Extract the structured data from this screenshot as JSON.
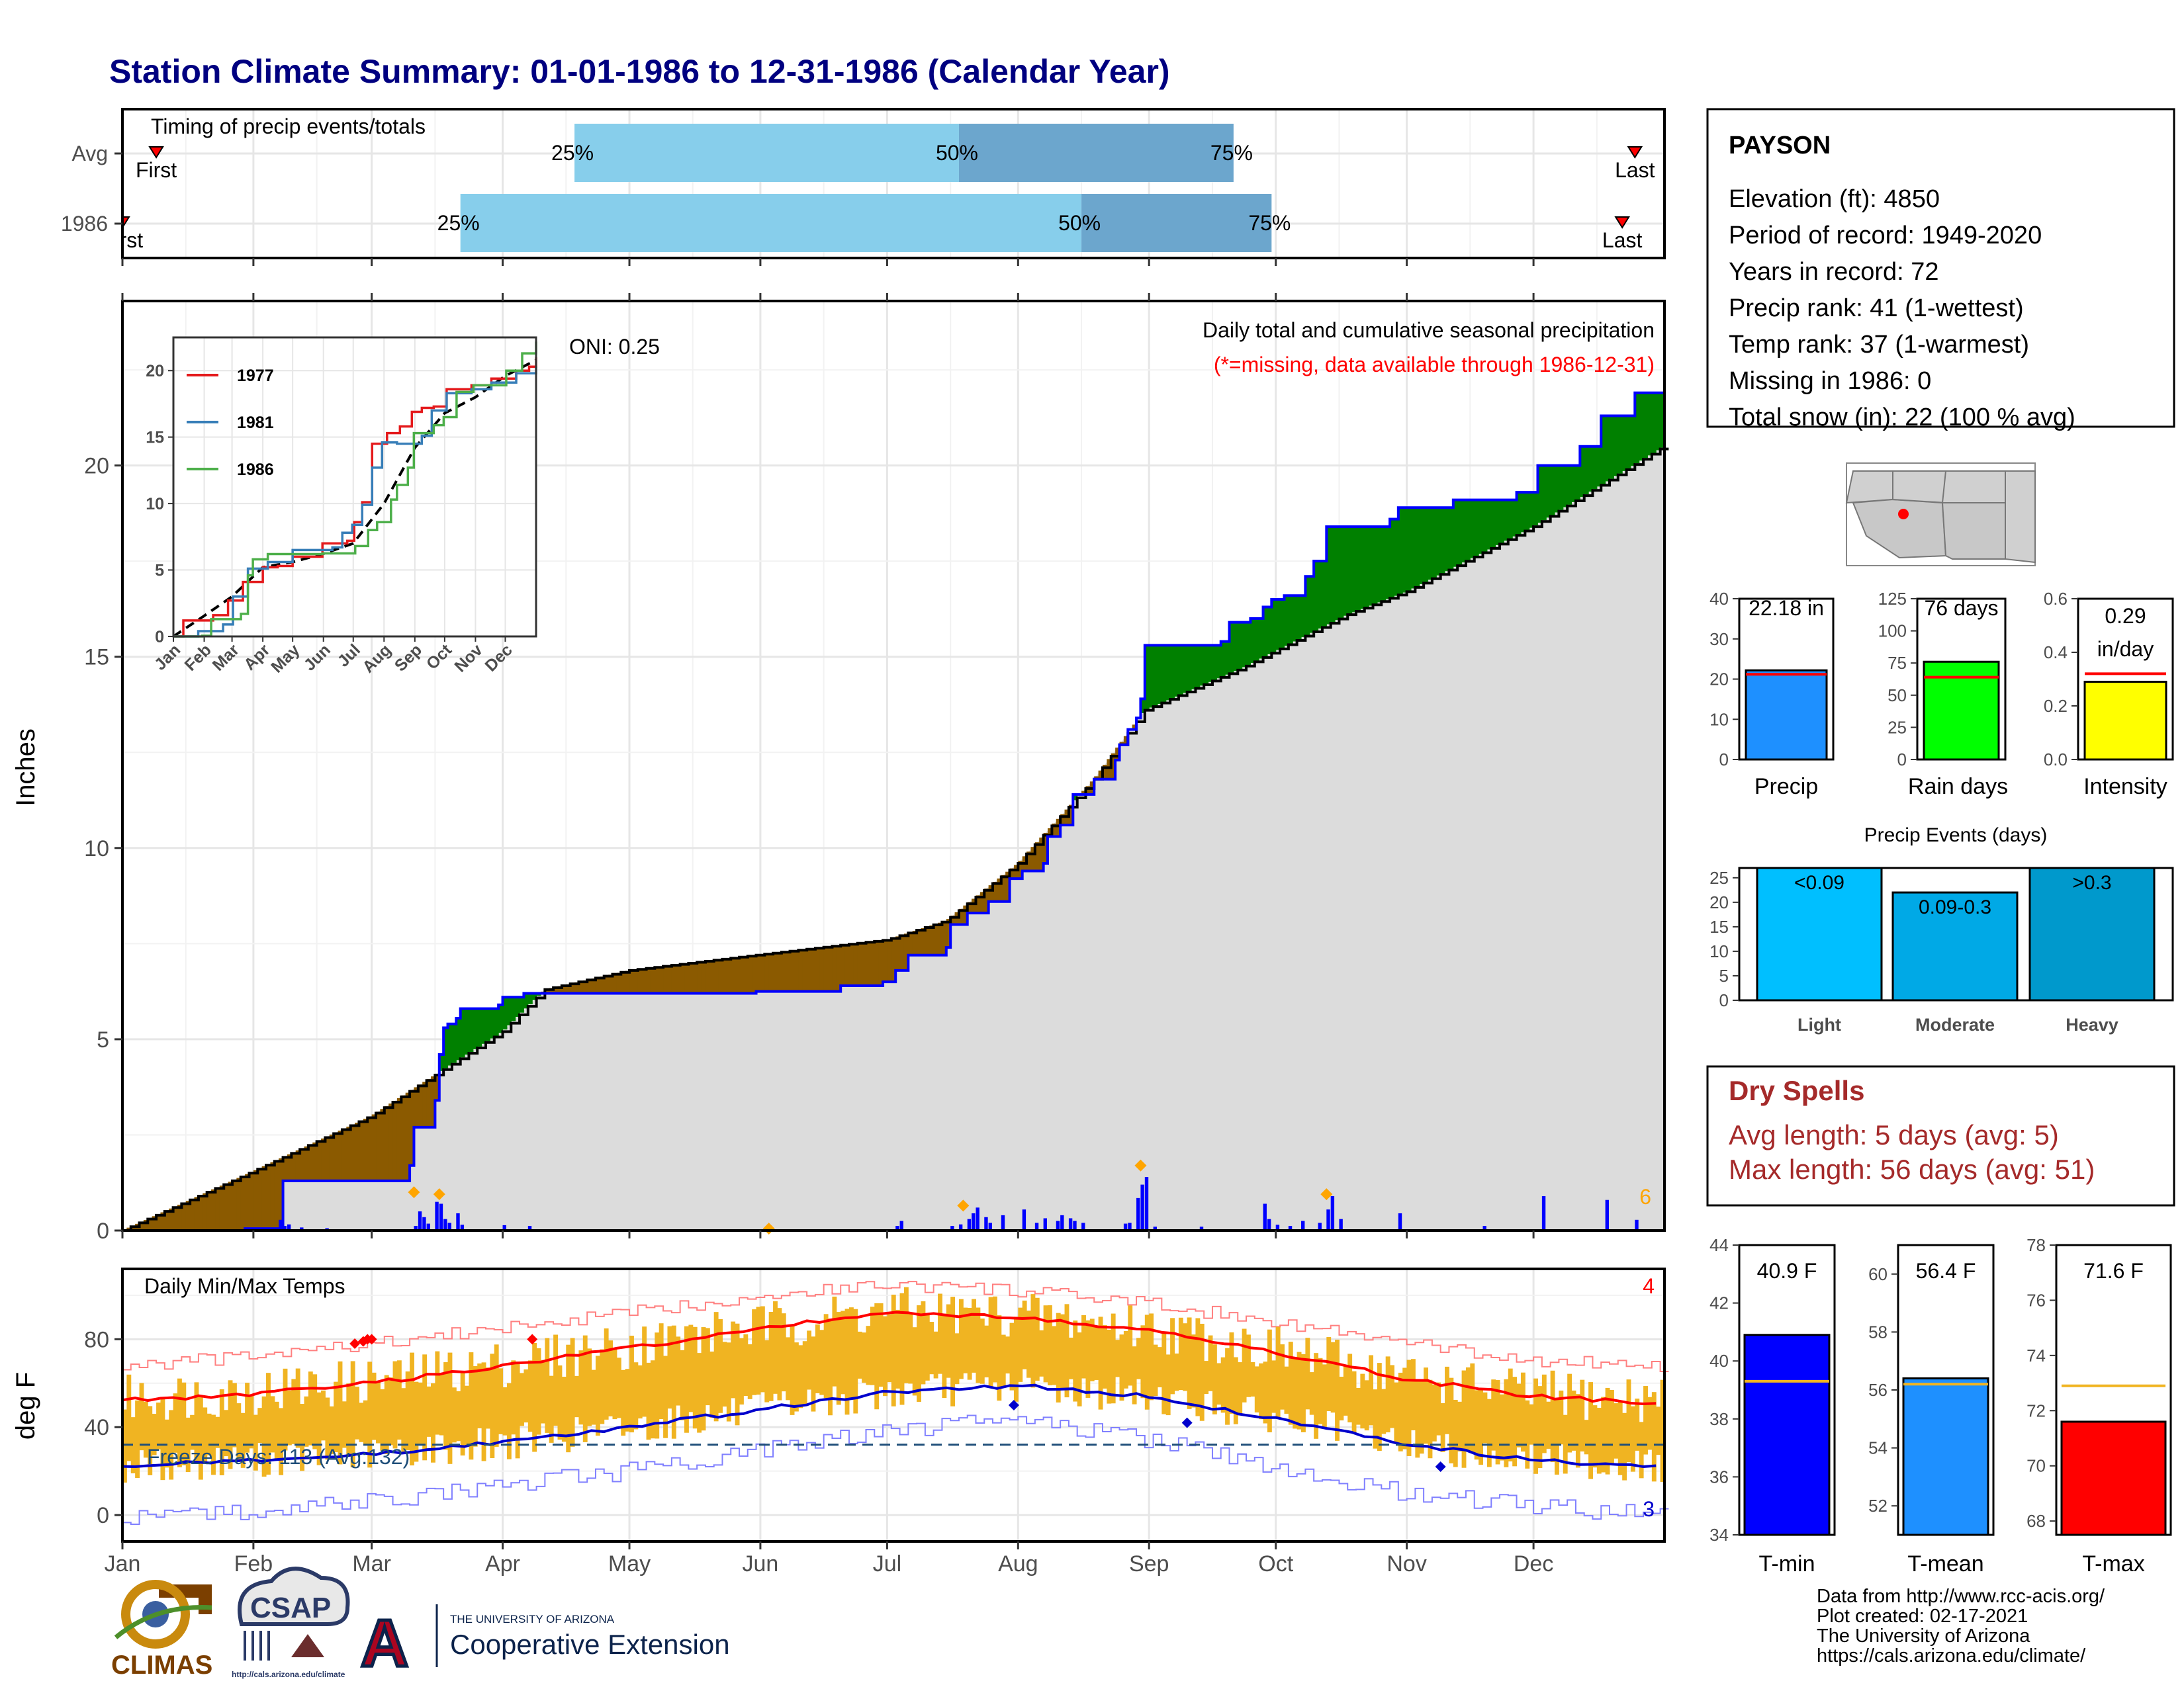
{
  "title": "Station Climate Summary: 01-01-1986 to 12-31-1986 (Calendar Year)",
  "months": [
    "Jan",
    "Feb",
    "Mar",
    "Apr",
    "May",
    "Jun",
    "Jul",
    "Aug",
    "Sep",
    "Oct",
    "Nov",
    "Dec"
  ],
  "timing": {
    "label": "Timing of precip events/totals",
    "rows": [
      {
        "name": "Avg",
        "first_doy": 8,
        "q25_doy": 107,
        "q50_doy": 198,
        "q75_doy": 263,
        "last_doy": 358,
        "first_label": "First",
        "last_label": "Last"
      },
      {
        "name": "1986",
        "first_doy": 0,
        "q25_doy": 80,
        "q50_doy": 227,
        "q75_doy": 272,
        "last_doy": 355,
        "first_label": "First",
        "last_label": "Last"
      }
    ],
    "pct_labels": [
      "25%",
      "50%",
      "75%"
    ]
  },
  "precip": {
    "ylabel": "Inches",
    "yticks": [
      0,
      5,
      10,
      15,
      20
    ],
    "header": "Daily total and cumulative seasonal precipitation",
    "subheader": "(*=missing, data available through 1986-12-31)",
    "oni": "ONI: 0.25",
    "corner_count": "6",
    "cum_1986": [
      [
        0,
        0
      ],
      [
        29,
        0.05
      ],
      [
        38,
        1.3
      ],
      [
        68,
        1.7
      ],
      [
        69,
        2.7
      ],
      [
        74,
        3.4
      ],
      [
        75,
        4.6
      ],
      [
        76,
        5.3
      ],
      [
        77,
        5.4
      ],
      [
        79,
        5.55
      ],
      [
        80,
        5.8
      ],
      [
        89,
        5.9
      ],
      [
        90,
        6.1
      ],
      [
        95,
        6.2
      ],
      [
        150,
        6.25
      ],
      [
        170,
        6.4
      ],
      [
        180,
        6.5
      ],
      [
        183,
        6.8
      ],
      [
        186,
        7.2
      ],
      [
        195,
        7.4
      ],
      [
        196,
        8.0
      ],
      [
        200,
        8.3
      ],
      [
        205,
        8.6
      ],
      [
        210,
        9.2
      ],
      [
        213,
        9.4
      ],
      [
        218,
        9.6
      ],
      [
        219,
        10.3
      ],
      [
        222,
        10.6
      ],
      [
        225,
        11.4
      ],
      [
        230,
        11.8
      ],
      [
        235,
        12.3
      ],
      [
        236,
        12.7
      ],
      [
        238,
        13.1
      ],
      [
        240,
        13.4
      ],
      [
        241,
        13.9
      ],
      [
        242,
        15.3
      ],
      [
        260,
        15.4
      ],
      [
        262,
        15.9
      ],
      [
        267,
        16.0
      ],
      [
        270,
        16.3
      ],
      [
        272,
        16.5
      ],
      [
        275,
        16.6
      ],
      [
        280,
        17.1
      ],
      [
        282,
        17.5
      ],
      [
        285,
        18.4
      ],
      [
        300,
        18.6
      ],
      [
        302,
        18.9
      ],
      [
        315,
        19.1
      ],
      [
        330,
        19.3
      ],
      [
        335,
        20.0
      ],
      [
        345,
        20.5
      ],
      [
        350,
        21.3
      ],
      [
        358,
        21.9
      ],
      [
        365,
        22.18
      ]
    ],
    "cum_avg": [
      [
        0,
        0
      ],
      [
        30,
        1.5
      ],
      [
        59,
        3.0
      ],
      [
        90,
        5.2
      ],
      [
        100,
        6.3
      ],
      [
        120,
        6.8
      ],
      [
        150,
        7.2
      ],
      [
        181,
        7.6
      ],
      [
        195,
        8.1
      ],
      [
        212,
        9.6
      ],
      [
        230,
        11.8
      ],
      [
        242,
        13.6
      ],
      [
        265,
        14.7
      ],
      [
        290,
        16.1
      ],
      [
        304,
        16.7
      ],
      [
        334,
        18.4
      ],
      [
        365,
        20.5
      ]
    ],
    "daily_bars": [
      [
        37,
        0.28
      ],
      [
        38,
        0.12
      ],
      [
        39,
        0.16
      ],
      [
        42,
        0.08
      ],
      [
        48,
        0.06
      ],
      [
        69,
        0.12
      ],
      [
        70,
        0.5
      ],
      [
        71,
        0.35
      ],
      [
        72,
        0.18
      ],
      [
        74,
        0.75
      ],
      [
        75,
        0.7
      ],
      [
        76,
        0.3
      ],
      [
        77,
        0.2
      ],
      [
        79,
        0.45
      ],
      [
        80,
        0.15
      ],
      [
        90,
        0.14
      ],
      [
        96,
        0.12
      ],
      [
        183,
        0.12
      ],
      [
        184,
        0.25
      ],
      [
        196,
        0.12
      ],
      [
        198,
        0.16
      ],
      [
        200,
        0.3
      ],
      [
        201,
        0.45
      ],
      [
        202,
        0.6
      ],
      [
        204,
        0.35
      ],
      [
        205,
        0.2
      ],
      [
        208,
        0.4
      ],
      [
        213,
        0.55
      ],
      [
        216,
        0.2
      ],
      [
        218,
        0.32
      ],
      [
        221,
        0.25
      ],
      [
        222,
        0.4
      ],
      [
        224,
        0.32
      ],
      [
        225,
        0.25
      ],
      [
        227,
        0.2
      ],
      [
        237,
        0.18
      ],
      [
        238,
        0.2
      ],
      [
        240,
        0.85
      ],
      [
        241,
        1.2
      ],
      [
        242,
        1.4
      ],
      [
        244,
        0.1
      ],
      [
        255,
        0.1
      ],
      [
        270,
        0.7
      ],
      [
        271,
        0.3
      ],
      [
        273,
        0.15
      ],
      [
        276,
        0.12
      ],
      [
        279,
        0.25
      ],
      [
        283,
        0.2
      ],
      [
        285,
        0.55
      ],
      [
        286,
        0.9
      ],
      [
        288,
        0.3
      ],
      [
        302,
        0.45
      ],
      [
        322,
        0.12
      ],
      [
        336,
        0.9
      ],
      [
        351,
        0.8
      ],
      [
        358,
        0.28
      ]
    ],
    "missing_markers": [
      [
        69,
        1.0
      ],
      [
        75,
        0.95
      ],
      [
        153,
        0.05
      ],
      [
        199,
        0.65
      ],
      [
        241,
        1.7
      ],
      [
        285,
        0.95
      ]
    ]
  },
  "inset": {
    "yticks": [
      0,
      5,
      10,
      15,
      20
    ],
    "months": [
      "Jan",
      "Feb",
      "Mar",
      "Apr",
      "May",
      "Jun",
      "Jul",
      "Aug",
      "Sep",
      "Oct",
      "Nov",
      "Dec"
    ],
    "series": [
      {
        "name": "1977",
        "color": "#e41a1c",
        "points": [
          [
            0,
            0
          ],
          [
            10,
            1.2
          ],
          [
            40,
            1.6
          ],
          [
            55,
            2.7
          ],
          [
            70,
            4.1
          ],
          [
            90,
            5.2
          ],
          [
            105,
            5.3
          ],
          [
            120,
            6.0
          ],
          [
            150,
            7.0
          ],
          [
            175,
            7.2
          ],
          [
            182,
            8.6
          ],
          [
            190,
            10.1
          ],
          [
            200,
            14.5
          ],
          [
            215,
            15.3
          ],
          [
            228,
            15.8
          ],
          [
            240,
            16.9
          ],
          [
            250,
            17.2
          ],
          [
            262,
            17.3
          ],
          [
            275,
            18.6
          ],
          [
            300,
            18.9
          ],
          [
            320,
            19.4
          ],
          [
            345,
            20.0
          ],
          [
            358,
            20.3
          ],
          [
            365,
            21.0
          ]
        ]
      },
      {
        "name": "1981",
        "color": "#377eb8",
        "points": [
          [
            0,
            0
          ],
          [
            25,
            0.4
          ],
          [
            50,
            0.9
          ],
          [
            60,
            3.0
          ],
          [
            75,
            5.1
          ],
          [
            95,
            5.6
          ],
          [
            120,
            6.5
          ],
          [
            160,
            6.7
          ],
          [
            170,
            7.8
          ],
          [
            180,
            8.4
          ],
          [
            190,
            9.9
          ],
          [
            200,
            12.7
          ],
          [
            210,
            14.6
          ],
          [
            225,
            14.5
          ],
          [
            240,
            14.5
          ],
          [
            250,
            15.1
          ],
          [
            260,
            17.0
          ],
          [
            275,
            18.3
          ],
          [
            300,
            18.6
          ],
          [
            320,
            19.1
          ],
          [
            345,
            19.8
          ],
          [
            365,
            20.3
          ]
        ]
      },
      {
        "name": "1986",
        "color": "#4daf4a",
        "points": [
          [
            0,
            0
          ],
          [
            29,
            0.05
          ],
          [
            38,
            1.3
          ],
          [
            68,
            1.7
          ],
          [
            75,
            4.6
          ],
          [
            80,
            5.8
          ],
          [
            95,
            6.2
          ],
          [
            150,
            6.25
          ],
          [
            183,
            6.8
          ],
          [
            196,
            8.0
          ],
          [
            205,
            8.6
          ],
          [
            219,
            10.3
          ],
          [
            225,
            11.4
          ],
          [
            236,
            12.7
          ],
          [
            242,
            15.3
          ],
          [
            262,
            15.9
          ],
          [
            272,
            16.5
          ],
          [
            285,
            18.4
          ],
          [
            302,
            18.9
          ],
          [
            335,
            20.0
          ],
          [
            351,
            21.3
          ],
          [
            365,
            22.18
          ]
        ]
      }
    ],
    "avg_points": [
      [
        0,
        0
      ],
      [
        30,
        1.5
      ],
      [
        59,
        3.0
      ],
      [
        90,
        5.2
      ],
      [
        120,
        5.6
      ],
      [
        150,
        6.2
      ],
      [
        181,
        7.0
      ],
      [
        212,
        10.0
      ],
      [
        243,
        14.2
      ],
      [
        273,
        16.8
      ],
      [
        304,
        18.0
      ],
      [
        334,
        19.6
      ],
      [
        365,
        20.8
      ]
    ]
  },
  "temps": {
    "ylabel": "deg F",
    "yticks": [
      0,
      40,
      80
    ],
    "label": "Daily Min/Max Temps",
    "freeze_label": "Freeze Days: 113 (Avg:132)",
    "freeze_line": 32,
    "top_right_count": "4",
    "bottom_right_count": "3",
    "normal_max": [
      [
        0,
        52
      ],
      [
        30,
        55
      ],
      [
        59,
        60
      ],
      [
        90,
        68
      ],
      [
        120,
        76
      ],
      [
        151,
        85
      ],
      [
        181,
        92
      ],
      [
        212,
        90
      ],
      [
        243,
        84
      ],
      [
        273,
        74
      ],
      [
        304,
        62
      ],
      [
        334,
        54
      ],
      [
        365,
        51
      ]
    ],
    "normal_min": [
      [
        0,
        22
      ],
      [
        30,
        25
      ],
      [
        59,
        28
      ],
      [
        90,
        33
      ],
      [
        120,
        40
      ],
      [
        151,
        48
      ],
      [
        181,
        56
      ],
      [
        212,
        59
      ],
      [
        243,
        54
      ],
      [
        273,
        44
      ],
      [
        304,
        32
      ],
      [
        334,
        25
      ],
      [
        365,
        22
      ]
    ],
    "record_max": [
      [
        0,
        68
      ],
      [
        30,
        72
      ],
      [
        59,
        78
      ],
      [
        90,
        85
      ],
      [
        120,
        92
      ],
      [
        151,
        100
      ],
      [
        181,
        105
      ],
      [
        212,
        102
      ],
      [
        243,
        96
      ],
      [
        273,
        88
      ],
      [
        304,
        78
      ],
      [
        334,
        70
      ],
      [
        365,
        68
      ]
    ],
    "record_min": [
      [
        0,
        -2
      ],
      [
        30,
        2
      ],
      [
        59,
        6
      ],
      [
        90,
        14
      ],
      [
        120,
        20
      ],
      [
        151,
        30
      ],
      [
        181,
        38
      ],
      [
        212,
        44
      ],
      [
        243,
        34
      ],
      [
        273,
        22
      ],
      [
        304,
        10
      ],
      [
        334,
        4
      ],
      [
        365,
        0
      ]
    ],
    "record_high_markers": [
      [
        55,
        78
      ],
      [
        57,
        79
      ],
      [
        58,
        80
      ],
      [
        59,
        80
      ],
      [
        97,
        80
      ]
    ],
    "record_low_markers": [
      [
        211,
        50
      ],
      [
        252,
        42
      ],
      [
        312,
        22
      ]
    ]
  },
  "station": {
    "name": "PAYSON",
    "lines": [
      "Elevation (ft): 4850",
      "Period of record: 1949-2020",
      "Years in record: 72",
      "Precip rank: 41 (1-wettest)",
      "Temp rank: 37 (1-warmest)",
      "Missing in 1986: 0",
      "Total snow (in): 22 (100 % avg)"
    ]
  },
  "small_bars": [
    {
      "label": "Precip",
      "value_text": "22.18 in",
      "value": 22.18,
      "avg": 21.2,
      "ymin": 0,
      "ymax": 40,
      "yticks": [
        0,
        10,
        20,
        30,
        40
      ],
      "color": "#1e90ff"
    },
    {
      "label": "Rain days",
      "value_text": "76 days",
      "value": 76,
      "avg": 64,
      "ymin": 0,
      "ymax": 125,
      "yticks": [
        0,
        25,
        50,
        75,
        100,
        125
      ],
      "color": "#00ff00"
    },
    {
      "label": "Intensity",
      "value_text": "0.29 in/day",
      "value": 0.29,
      "avg": 0.32,
      "ymin": 0,
      "ymax": 0.6,
      "yticks": [
        "0.0",
        "0.2",
        "0.4",
        "0.6"
      ],
      "color": "#ffff00"
    }
  ],
  "events": {
    "title": "Precip Events (days)",
    "ymax": 27,
    "yticks": [
      0,
      5,
      10,
      15,
      20,
      25
    ],
    "bars": [
      {
        "label": "Light",
        "bar_text": "<0.09",
        "value": 27,
        "color": "#00bfff"
      },
      {
        "label": "Moderate",
        "bar_text": "0.09-0.3",
        "value": 22,
        "color": "#00a9e6"
      },
      {
        "label": "Heavy",
        "bar_text": ">0.3",
        "value": 27,
        "color": "#0099cc"
      }
    ]
  },
  "dry_spells": {
    "title": "Dry Spells",
    "lines": [
      "Avg length: 5 days (avg: 5)",
      "Max length: 56 days (avg: 51)"
    ]
  },
  "temp_bars": [
    {
      "label": "T-min",
      "value_text": "40.9 F",
      "value": 40.9,
      "avg": 39.3,
      "ymin": 34,
      "ymax": 44,
      "yticks": [
        34,
        36,
        38,
        40,
        42,
        44
      ],
      "color": "#0000ff"
    },
    {
      "label": "T-mean",
      "value_text": "56.4 F",
      "value": 56.4,
      "avg": 56.2,
      "ymin": 51,
      "ymax": 61,
      "yticks": [
        52,
        54,
        56,
        58,
        60
      ],
      "color": "#1e90ff"
    },
    {
      "label": "T-max",
      "value_text": "71.6 F",
      "value": 71.6,
      "avg": 72.9,
      "ymin": 67.5,
      "ymax": 78,
      "yticks": [
        68,
        70,
        72,
        74,
        76,
        78
      ],
      "color": "#ff0000"
    }
  ],
  "credits": [
    "Data from http://www.rcc-acis.org/",
    "Plot created: 02-17-2021",
    "The University of Arizona",
    "https://cals.arizona.edu/climate/"
  ],
  "logos": {
    "climas": "CLIMAS",
    "csap": "CSAP",
    "csap_url": "http://cals.arizona.edu/climate",
    "ua_letter": "A",
    "ua_small": "THE UNIVERSITY OF ARIZONA",
    "ua_big": "Cooperative Extension"
  }
}
